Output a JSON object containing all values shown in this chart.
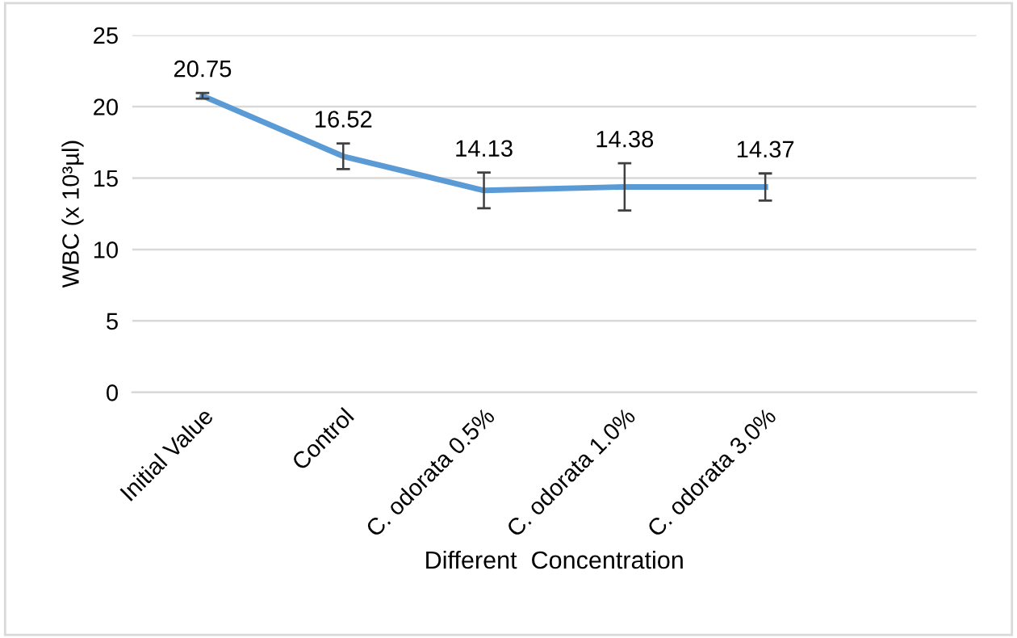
{
  "chart_data": {
    "type": "line",
    "xlabel": "Different  Concentration",
    "ylabel": "WBC (x 10³µl)",
    "categories": [
      "Initial Value",
      "Control",
      "C. odorata 0.5%",
      "C. odorata 1.0%",
      "C. odorata 3.0%",
      null
    ],
    "series": [
      {
        "color": "#5b9bd5",
        "values": [
          20.75,
          16.52,
          14.13,
          14.38,
          14.37,
          null
        ],
        "errors": [
          0.2,
          0.9,
          1.25,
          1.65,
          0.95,
          null
        ]
      }
    ],
    "ylim": [
      0,
      25
    ],
    "yticks": [
      0,
      5,
      10,
      15,
      20,
      25
    ],
    "grid": "y",
    "data_labels": true,
    "marker": "none",
    "line_style": "solid"
  }
}
